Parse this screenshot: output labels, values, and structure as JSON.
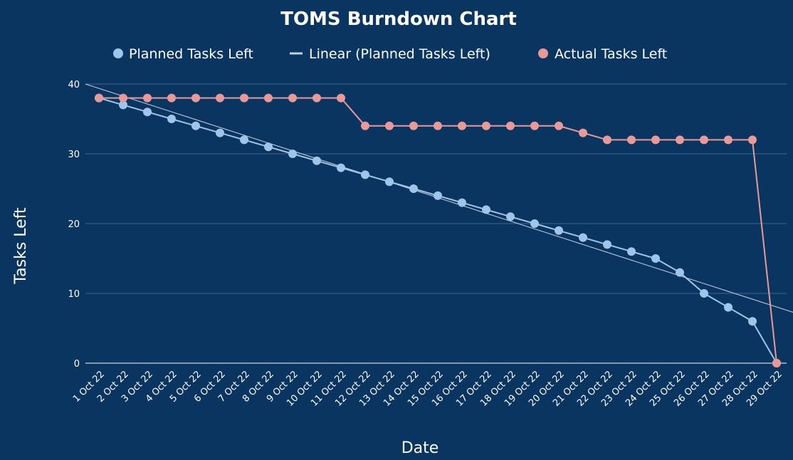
{
  "colors": {
    "background": "#0b3561",
    "planned": "#9fc5e8",
    "actual": "#ea9999",
    "trend": "#c9d3e0",
    "grid": "#3d6790",
    "text": "#ffffff"
  },
  "chart_data": {
    "type": "line",
    "title": "TOMS Burndown Chart",
    "xlabel": "Date",
    "ylabel": "Tasks Left",
    "ylim": [
      0,
      40
    ],
    "yticks": [
      0,
      10,
      20,
      30,
      40
    ],
    "grid": true,
    "legend_position": "top-center",
    "categories": [
      "1 Oct 22",
      "2 Oct 22",
      "3 Oct 22",
      "4 Oct 22",
      "5 Oct 22",
      "6 Oct 22",
      "7 Oct 22",
      "8 Oct 22",
      "9 Oct 22",
      "10 Oct 22",
      "11 Oct 22",
      "12 Oct 22",
      "13 Oct 22",
      "14 Oct 22",
      "15 Oct 22",
      "16 Oct 22",
      "17 Oct 22",
      "18 Oct 22",
      "19 Oct 22",
      "20 Oct 22",
      "21 Oct 22",
      "22 Oct 22",
      "23 Oct 22",
      "24 Oct 22",
      "25 Oct 22",
      "26 Oct 22",
      "27 Oct 22",
      "28 Oct 22",
      "29 Oct 22"
    ],
    "series": [
      {
        "name": "Planned Tasks Left",
        "color_key": "planned",
        "values": [
          38,
          37,
          36,
          35,
          34,
          33,
          32,
          31,
          30,
          29,
          28,
          27,
          26,
          25,
          24,
          23,
          22,
          21,
          20,
          19,
          18,
          17,
          16,
          15,
          13,
          10,
          8,
          6,
          0
        ]
      },
      {
        "name": "Actual Tasks Left",
        "color_key": "actual",
        "values": [
          38,
          38,
          38,
          38,
          38,
          38,
          38,
          38,
          38,
          38,
          38,
          34,
          34,
          34,
          34,
          34,
          34,
          34,
          34,
          34,
          33,
          32,
          32,
          32,
          32,
          32,
          32,
          32,
          0
        ]
      }
    ],
    "trendline": {
      "name": "Linear (Planned Tasks Left)",
      "of_series": "Planned Tasks Left",
      "type": "linear",
      "start_value": 40,
      "end_value": 6.6
    }
  }
}
